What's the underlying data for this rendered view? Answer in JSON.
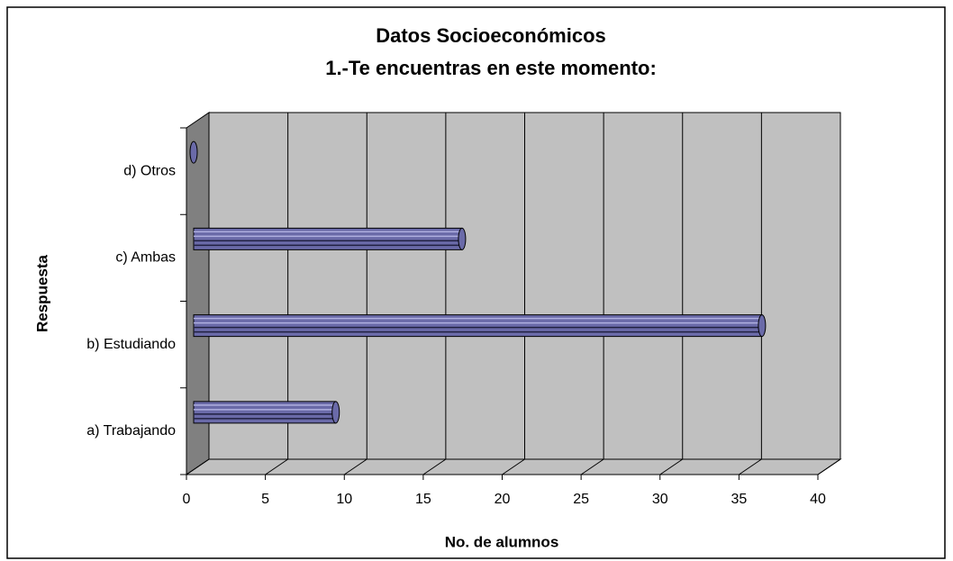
{
  "chart_data": {
    "type": "bar",
    "orientation": "horizontal",
    "title": "Datos Socioeconómicos",
    "subtitle": "1.-Te encuentras en este momento:",
    "categories": [
      "a) Trabajando",
      "b) Estudiando",
      "c) Ambas",
      "d) Otros"
    ],
    "values": [
      9,
      36,
      17,
      0
    ],
    "color": "#6a6aa8",
    "xlim": [
      0,
      40
    ],
    "xticks": [
      0,
      5,
      10,
      15,
      20,
      25,
      30,
      35,
      40
    ],
    "xlabel": "No. de alumnos",
    "ylabel": "Respuesta",
    "grid": true
  }
}
